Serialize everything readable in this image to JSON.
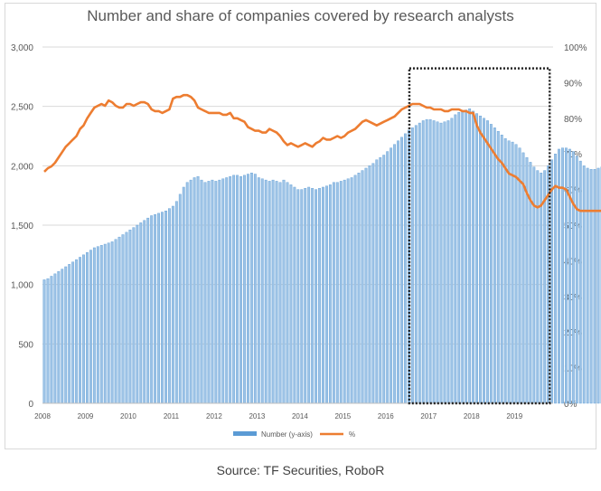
{
  "caption": "Source: TF Securities, RoboR",
  "colors": {
    "bar": "#9dc3e6",
    "bar_edge": "#5b9bd5",
    "line": "#ed7d31",
    "grid": "#d9d9d9",
    "text": "#595959",
    "highlight_box": "#222222"
  },
  "chart_data": {
    "type": "bar",
    "title": "Number and share of companies covered by research analysts",
    "xlabel": "",
    "ylabel": "",
    "y2label": "",
    "ylim": [
      0,
      3000
    ],
    "y2lim": [
      0,
      100
    ],
    "grid": true,
    "legend_position": "bottom",
    "x_tick_labels": [
      "2008",
      "2009",
      "2010",
      "2011",
      "2012",
      "2013",
      "2014",
      "2015",
      "2016",
      "2017",
      "2018",
      "2019"
    ],
    "y_tick_labels": [
      "0",
      "500",
      "1,000",
      "1,500",
      "2,000",
      "2,500",
      "3,000"
    ],
    "y2_tick_labels": [
      "0%",
      "10%",
      "20%",
      "30%",
      "40%",
      "50%",
      "60%",
      "70%",
      "80%",
      "90%",
      "100%"
    ],
    "x_start": 2008.0,
    "x_step": 0.0833,
    "series": [
      {
        "name": "Number (y-axis)",
        "axis": "left",
        "type": "bar",
        "values": [
          1040,
          1050,
          1070,
          1090,
          1110,
          1130,
          1150,
          1170,
          1190,
          1210,
          1230,
          1250,
          1270,
          1290,
          1310,
          1320,
          1330,
          1340,
          1350,
          1360,
          1380,
          1400,
          1420,
          1440,
          1460,
          1480,
          1500,
          1520,
          1540,
          1560,
          1580,
          1590,
          1600,
          1610,
          1620,
          1640,
          1660,
          1700,
          1760,
          1820,
          1860,
          1880,
          1900,
          1910,
          1880,
          1860,
          1870,
          1880,
          1870,
          1880,
          1890,
          1900,
          1910,
          1920,
          1920,
          1910,
          1920,
          1930,
          1940,
          1930,
          1900,
          1890,
          1880,
          1870,
          1880,
          1870,
          1860,
          1880,
          1860,
          1840,
          1820,
          1800,
          1800,
          1810,
          1820,
          1810,
          1800,
          1810,
          1820,
          1830,
          1840,
          1860,
          1860,
          1870,
          1880,
          1890,
          1900,
          1920,
          1940,
          1960,
          1980,
          2000,
          2020,
          2050,
          2070,
          2090,
          2120,
          2150,
          2180,
          2210,
          2240,
          2270,
          2300,
          2320,
          2340,
          2360,
          2380,
          2390,
          2390,
          2380,
          2370,
          2360,
          2370,
          2380,
          2400,
          2430,
          2450,
          2460,
          2470,
          2480,
          2460,
          2440,
          2420,
          2400,
          2380,
          2350,
          2320,
          2290,
          2260,
          2230,
          2210,
          2200,
          2180,
          2150,
          2110,
          2070,
          2030,
          1990,
          1960,
          1940,
          1960,
          2000,
          2050,
          2100,
          2140,
          2150,
          2150,
          2140,
          2120,
          2080,
          2040,
          2000,
          1980,
          1970,
          1970,
          1980,
          1990,
          2000,
          2020,
          2040,
          2060,
          2080,
          2100,
          2120
        ]
      },
      {
        "name": "%",
        "axis": "right",
        "type": "line",
        "values": [
          65,
          66,
          66.5,
          67.5,
          69,
          70.5,
          72,
          73,
          74,
          75,
          77,
          78,
          80,
          81.5,
          83,
          83.5,
          84,
          83.5,
          85,
          84.5,
          83.5,
          83,
          83,
          84,
          84,
          83.5,
          84,
          84.5,
          84.5,
          84,
          82.5,
          82,
          82,
          81.5,
          82,
          82.5,
          85.5,
          86,
          86,
          86.5,
          86.5,
          86,
          85,
          83,
          82.5,
          82,
          81.5,
          81.5,
          81.5,
          81.5,
          81,
          81,
          81.5,
          80,
          80,
          79.5,
          79,
          77.5,
          77,
          76.5,
          76.5,
          76,
          76,
          77,
          76.5,
          76,
          75,
          73.5,
          72.5,
          73,
          72.5,
          72,
          72.5,
          73,
          72.5,
          72,
          73,
          73.5,
          74.5,
          74,
          74,
          74.5,
          75,
          74.5,
          75,
          76,
          76.5,
          77,
          78,
          79,
          79.5,
          79,
          78.5,
          78,
          78.5,
          79,
          79.5,
          80,
          80.5,
          81.5,
          82.5,
          83,
          83.5,
          84,
          84,
          84,
          83.5,
          83,
          83,
          82.5,
          82.5,
          82.5,
          82,
          82,
          82.5,
          82.5,
          82.5,
          82,
          82,
          81.5,
          81.5,
          78,
          76,
          74.5,
          73,
          71.5,
          70,
          68.5,
          67.5,
          66,
          64.5,
          64,
          63.5,
          62.5,
          61.5,
          59,
          57,
          55.5,
          55,
          55.5,
          57,
          58.5,
          60,
          61,
          60.5,
          60.5,
          60,
          58,
          56,
          54.5,
          54,
          54,
          54,
          54,
          54,
          54,
          54,
          54,
          54.5,
          55,
          55.5,
          56,
          56.5,
          56.5
        ]
      }
    ],
    "highlight_box": {
      "x_range": [
        2016.55,
        2019.82
      ],
      "y_range_pct": [
        0,
        94
      ]
    }
  }
}
